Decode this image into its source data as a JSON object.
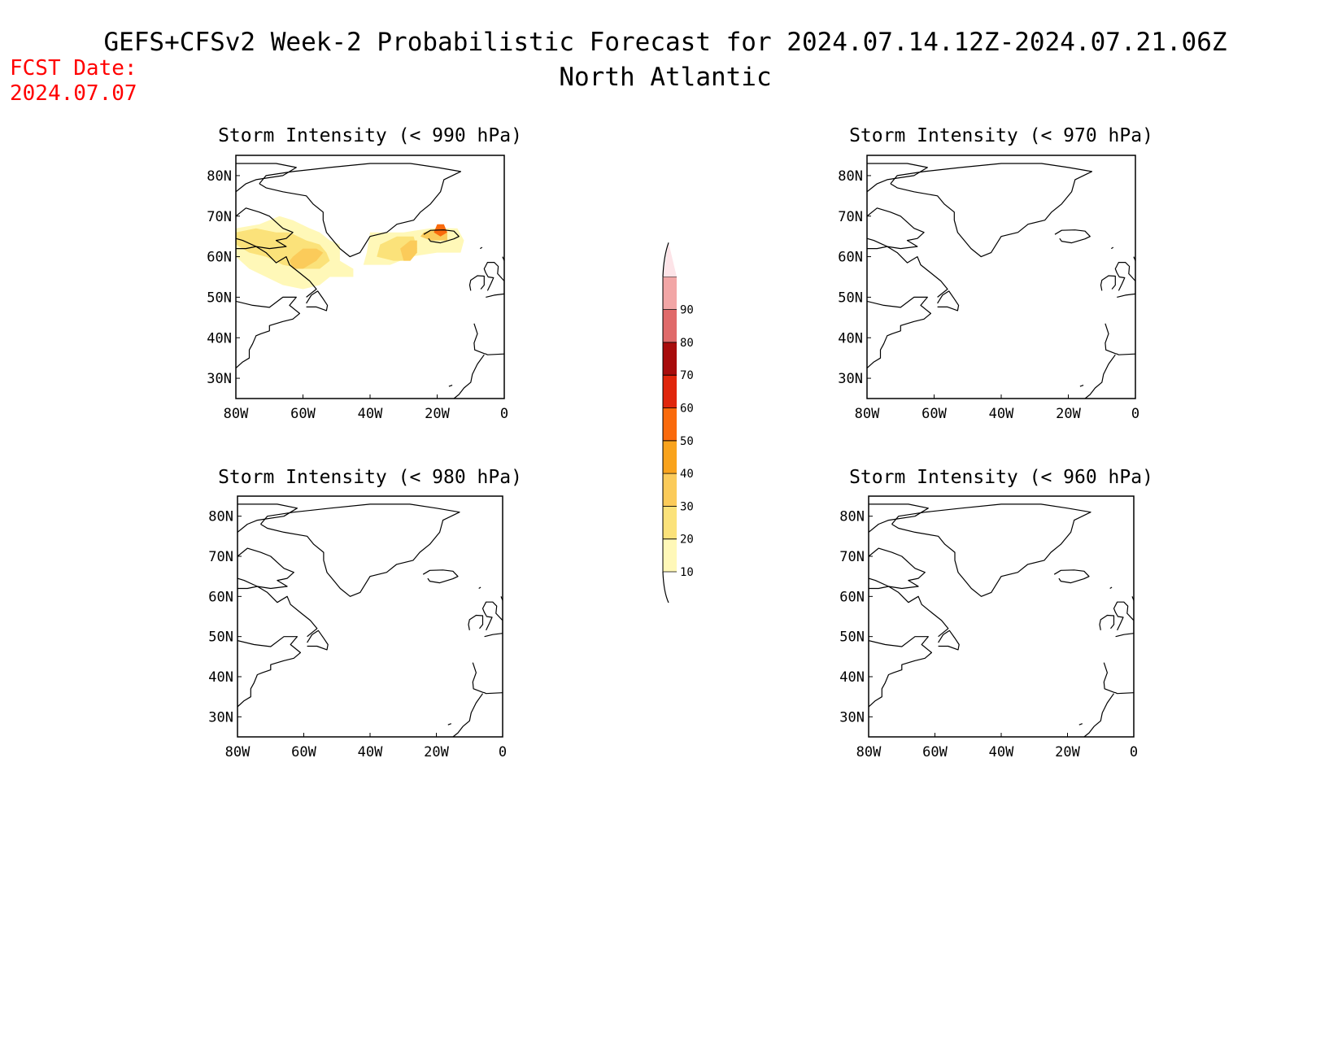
{
  "title": {
    "line1": "GEFS+CFSv2 Week-2 Probabilistic Forecast for 2024.07.14.12Z-2024.07.21.06Z",
    "line2": "North Atlantic"
  },
  "forecast_date": {
    "label": "FCST Date:",
    "value": "2024.07.07",
    "color": "#ff0000"
  },
  "map_extent": {
    "lon_min": -80,
    "lon_max": 0,
    "lat_min": 25,
    "lat_max": 85
  },
  "axis": {
    "x_ticks": [
      "80W",
      "60W",
      "40W",
      "20W",
      "0"
    ],
    "y_ticks": [
      "80N",
      "70N",
      "60N",
      "50N",
      "40N",
      "30N"
    ]
  },
  "panels": [
    {
      "id": "p990",
      "title": "Storm Intensity (< 990 hPa)",
      "probability_areas": [
        {
          "level": 10,
          "polygon": [
            [
              -80,
              67
            ],
            [
              -73,
              68
            ],
            [
              -67,
              70
            ],
            [
              -63,
              69
            ],
            [
              -58,
              67
            ],
            [
              -55,
              66
            ],
            [
              -52,
              64
            ],
            [
              -49,
              63
            ],
            [
              -49,
              59
            ],
            [
              -45,
              57
            ],
            [
              -45,
              55
            ],
            [
              -52,
              55
            ],
            [
              -55,
              53
            ],
            [
              -60,
              52
            ],
            [
              -66,
              53
            ],
            [
              -71,
              55
            ],
            [
              -76,
              57
            ],
            [
              -80,
              60
            ]
          ]
        },
        {
          "level": 20,
          "polygon": [
            [
              -80,
              66
            ],
            [
              -74,
              67
            ],
            [
              -68,
              66
            ],
            [
              -64,
              66
            ],
            [
              -59,
              64
            ],
            [
              -55,
              63
            ],
            [
              -53,
              61
            ],
            [
              -52,
              59
            ],
            [
              -55,
              57
            ],
            [
              -60,
              57
            ],
            [
              -66,
              58
            ],
            [
              -71,
              60
            ],
            [
              -76,
              61
            ],
            [
              -80,
              63
            ]
          ]
        },
        {
          "level": 30,
          "polygon": [
            [
              -63,
              60
            ],
            [
              -60,
              62
            ],
            [
              -56,
              62
            ],
            [
              -54,
              61
            ],
            [
              -56,
              59
            ],
            [
              -60,
              57
            ],
            [
              -63,
              57
            ],
            [
              -64,
              59
            ]
          ]
        },
        {
          "level": 10,
          "polygon": [
            [
              -40,
              66
            ],
            [
              -30,
              66
            ],
            [
              -22,
              67
            ],
            [
              -14,
              67
            ],
            [
              -12,
              64
            ],
            [
              -13,
              61
            ],
            [
              -20,
              61
            ],
            [
              -28,
              60
            ],
            [
              -34,
              58
            ],
            [
              -42,
              58
            ],
            [
              -41,
              61
            ]
          ]
        },
        {
          "level": 20,
          "polygon": [
            [
              -37,
              63
            ],
            [
              -32,
              65
            ],
            [
              -27,
              65
            ],
            [
              -26,
              62
            ],
            [
              -28,
              59
            ],
            [
              -33,
              59
            ],
            [
              -38,
              60
            ]
          ]
        },
        {
          "level": 30,
          "polygon": [
            [
              -31,
              62
            ],
            [
              -28,
              64
            ],
            [
              -26,
              64
            ],
            [
              -26,
              61
            ],
            [
              -28,
              59
            ],
            [
              -30,
              59
            ]
          ]
        },
        {
          "level": 30,
          "polygon": [
            [
              -24,
              66
            ],
            [
              -20,
              67
            ],
            [
              -17,
              66
            ],
            [
              -17,
              64
            ],
            [
              -22,
              64
            ],
            [
              -25,
              65
            ]
          ]
        },
        {
          "level": 50,
          "polygon": [
            [
              -20,
              68
            ],
            [
              -18,
              68
            ],
            [
              -17,
              66
            ],
            [
              -19,
              65
            ],
            [
              -21,
              66
            ]
          ]
        }
      ]
    },
    {
      "id": "p970",
      "title": "Storm Intensity (< 970 hPa)",
      "probability_areas": []
    },
    {
      "id": "p980",
      "title": "Storm Intensity (< 980 hPa)",
      "probability_areas": []
    },
    {
      "id": "p960",
      "title": "Storm Intensity (< 960 hPa)",
      "probability_areas": []
    }
  ],
  "colorbar": {
    "labels": [
      "10",
      "20",
      "30",
      "40",
      "50",
      "60",
      "70",
      "80",
      "90"
    ],
    "colors": [
      "#fff8b8",
      "#fbe27a",
      "#fbcb5a",
      "#f9a31c",
      "#fa6a0c",
      "#e0260c",
      "#a80c0c",
      "#e06a6a",
      "#f2a6a6",
      "#fde4e8"
    ]
  },
  "coastlines": {
    "greenland": [
      [
        -73,
        78
      ],
      [
        -71,
        80
      ],
      [
        -63,
        81
      ],
      [
        -52,
        82
      ],
      [
        -40,
        83
      ],
      [
        -28,
        83
      ],
      [
        -20,
        82
      ],
      [
        -13,
        81
      ],
      [
        -18,
        79
      ],
      [
        -19,
        76
      ],
      [
        -22,
        73
      ],
      [
        -25,
        71
      ],
      [
        -27,
        69
      ],
      [
        -32,
        68
      ],
      [
        -35,
        66
      ],
      [
        -40,
        65
      ],
      [
        -43,
        61
      ],
      [
        -46,
        60
      ],
      [
        -49,
        62
      ],
      [
        -51,
        64
      ],
      [
        -53,
        66
      ],
      [
        -54,
        69
      ],
      [
        -54,
        71
      ],
      [
        -57,
        73
      ],
      [
        -59,
        75
      ],
      [
        -66,
        76
      ],
      [
        -71,
        77
      ],
      [
        -73,
        78
      ]
    ],
    "iceland": [
      [
        -24,
        65.5
      ],
      [
        -22,
        66.5
      ],
      [
        -18,
        66.6
      ],
      [
        -15,
        66.3
      ],
      [
        -13.5,
        65
      ],
      [
        -15,
        64.4
      ],
      [
        -19,
        63.4
      ],
      [
        -22,
        63.8
      ],
      [
        -22.6,
        64.5
      ]
    ],
    "labrador": [
      [
        -80,
        62
      ],
      [
        -77,
        62
      ],
      [
        -74,
        62.5
      ],
      [
        -71,
        61
      ],
      [
        -68,
        58.5
      ],
      [
        -65,
        60
      ],
      [
        -64,
        58
      ],
      [
        -61,
        56
      ],
      [
        -58,
        54
      ],
      [
        -56,
        52
      ],
      [
        -57.5,
        51
      ],
      [
        -59,
        50
      ]
    ],
    "baffin": [
      [
        -80,
        70
      ],
      [
        -77,
        72
      ],
      [
        -73,
        71
      ],
      [
        -70,
        70
      ],
      [
        -68,
        68.5
      ],
      [
        -66,
        67
      ],
      [
        -63,
        66
      ],
      [
        -65,
        64.5
      ],
      [
        -68,
        64
      ],
      [
        -65,
        62.5
      ],
      [
        -70,
        62
      ],
      [
        -74,
        62.5
      ],
      [
        -78,
        64
      ],
      [
        -80,
        64.5
      ]
    ],
    "ellesmere": [
      [
        -80,
        76
      ],
      [
        -77,
        78
      ],
      [
        -74,
        79
      ],
      [
        -66,
        80
      ],
      [
        -62,
        82
      ],
      [
        -68,
        83
      ],
      [
        -80,
        83
      ]
    ],
    "north_america": [
      [
        -80,
        49
      ],
      [
        -75,
        48
      ],
      [
        -70,
        47.5
      ],
      [
        -66,
        50
      ],
      [
        -62,
        50
      ],
      [
        -64,
        48
      ],
      [
        -61,
        46
      ],
      [
        -63,
        44.6
      ],
      [
        -66,
        44
      ],
      [
        -70,
        43
      ],
      [
        -70,
        41.7
      ],
      [
        -72.5,
        41
      ],
      [
        -74,
        40.5
      ],
      [
        -75,
        38.5
      ],
      [
        -76,
        37
      ],
      [
        -76,
        35
      ],
      [
        -78,
        34
      ],
      [
        -80,
        32.5
      ],
      [
        -81,
        31
      ]
    ],
    "newfoundland": [
      [
        -59,
        47.6
      ],
      [
        -56,
        47.6
      ],
      [
        -53,
        46.7
      ],
      [
        -52.7,
        48
      ],
      [
        -54,
        49.6
      ],
      [
        -55.6,
        51.5
      ],
      [
        -57.5,
        50.5
      ],
      [
        -59,
        48.5
      ]
    ],
    "iberia": [
      [
        -9,
        43.5
      ],
      [
        -8,
        41
      ],
      [
        -9,
        38.7
      ],
      [
        -8.8,
        37
      ],
      [
        -6,
        36.1
      ],
      [
        -5.5,
        36
      ],
      [
        -5,
        35.8
      ],
      [
        0,
        36
      ]
    ],
    "africa": [
      [
        -6,
        35.8
      ],
      [
        -8,
        33.5
      ],
      [
        -9.5,
        31
      ],
      [
        -10,
        29
      ],
      [
        -12,
        27.6
      ],
      [
        -13.5,
        26
      ],
      [
        -15,
        25
      ]
    ],
    "ireland": [
      [
        -10,
        51.6
      ],
      [
        -10.3,
        53
      ],
      [
        -10,
        54.2
      ],
      [
        -8,
        55.3
      ],
      [
        -6,
        55.2
      ],
      [
        -6,
        53
      ],
      [
        -7,
        52
      ]
    ],
    "great_britain": [
      [
        -5.5,
        50
      ],
      [
        -3,
        50.5
      ],
      [
        0,
        50.8
      ],
      [
        0,
        54
      ],
      [
        -2,
        55.8
      ],
      [
        -1.8,
        57.6
      ],
      [
        -3,
        58.6
      ],
      [
        -5,
        58.6
      ],
      [
        -6,
        57
      ],
      [
        -5.5,
        56
      ],
      [
        -4.8,
        55
      ],
      [
        -3.2,
        54.8
      ],
      [
        -4,
        53.3
      ],
      [
        -5,
        51.6
      ]
    ],
    "scandinavia": [
      [
        0,
        59
      ],
      [
        -0.5,
        60
      ]
    ],
    "faroe": [
      [
        -7.2,
        62
      ],
      [
        -6.6,
        62.3
      ]
    ],
    "canary": [
      [
        -16.5,
        28
      ],
      [
        -15.5,
        28.3
      ]
    ]
  }
}
